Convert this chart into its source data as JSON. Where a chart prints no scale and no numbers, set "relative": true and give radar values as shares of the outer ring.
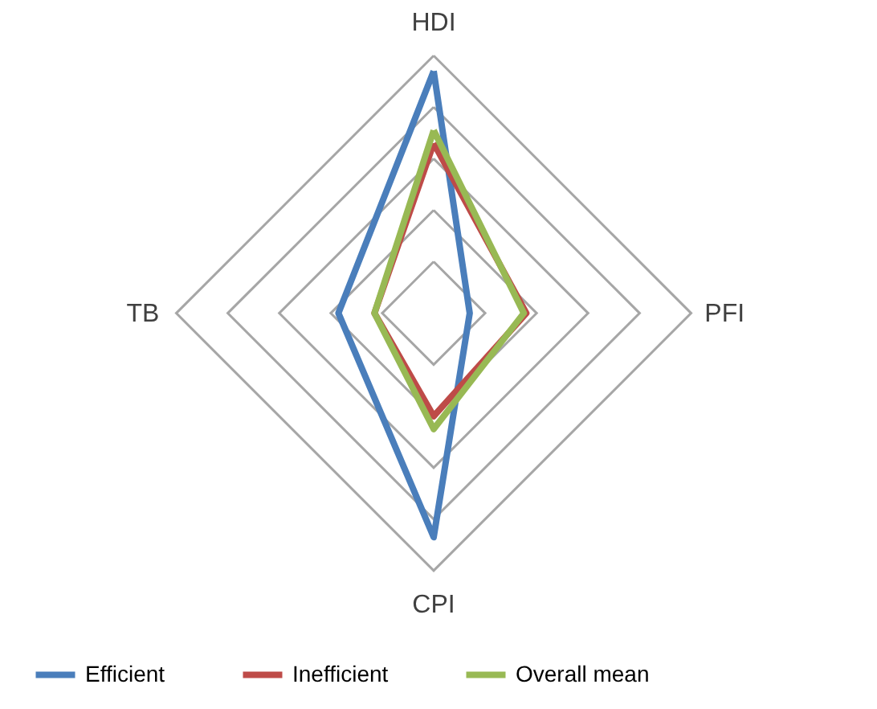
{
  "chart_data": {
    "type": "radar",
    "relative": true,
    "grid": true,
    "legend": "bottom",
    "categories": [
      "HDI",
      "PFI",
      "CPI",
      "TB"
    ],
    "series": [
      {
        "name": "Efficient",
        "color": "#4a7ebb",
        "values": [
          0.94,
          0.14,
          0.87,
          0.37
        ]
      },
      {
        "name": "Inefficient",
        "color": "#be4b48",
        "values": [
          0.66,
          0.36,
          0.4,
          0.23
        ]
      },
      {
        "name": "Overall mean",
        "color": "#98b954",
        "values": [
          0.71,
          0.35,
          0.45,
          0.23
        ]
      }
    ]
  }
}
